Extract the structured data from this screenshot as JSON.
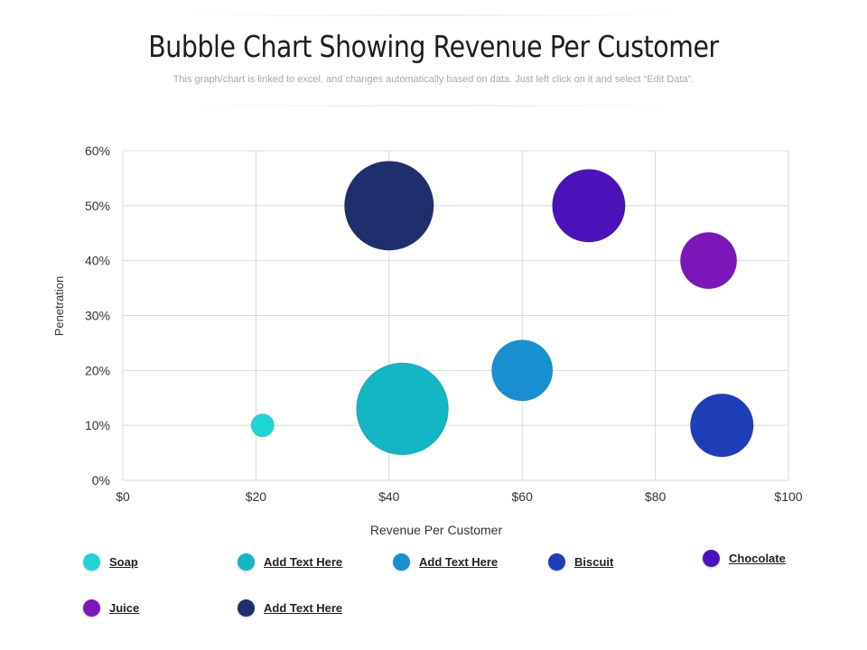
{
  "header": {
    "title": "Bubble Chart Showing Revenue Per Customer",
    "subtitle": "This graph/chart is linked to excel, and changes automatically based on data. Just left click on it and select “Edit Data”."
  },
  "chart_data": {
    "type": "bubble",
    "xlabel": "Revenue Per Customer",
    "ylabel": "Penetration",
    "xlim": [
      0,
      100
    ],
    "ylim": [
      0,
      60
    ],
    "x_ticks": [
      {
        "value": 0,
        "label": "$0"
      },
      {
        "value": 20,
        "label": "$20"
      },
      {
        "value": 40,
        "label": "$40"
      },
      {
        "value": 60,
        "label": "$60"
      },
      {
        "value": 80,
        "label": "$80"
      },
      {
        "value": 100,
        "label": "$100"
      }
    ],
    "y_ticks": [
      {
        "value": 0,
        "label": "0%"
      },
      {
        "value": 10,
        "label": "10%"
      },
      {
        "value": 20,
        "label": "20%"
      },
      {
        "value": 30,
        "label": "30%"
      },
      {
        "value": 40,
        "label": "40%"
      },
      {
        "value": 50,
        "label": "50%"
      },
      {
        "value": 60,
        "label": "60%"
      }
    ],
    "grid": true,
    "legend_position": "bottom",
    "series": [
      {
        "name": "Soap",
        "color": "#1fd5d5",
        "x": 21,
        "y": 10,
        "size": 1
      },
      {
        "name": "Add Text Here",
        "color": "#14b5c5",
        "x": 42,
        "y": 13,
        "size": 16
      },
      {
        "name": "Add Text Here",
        "color": "#1a8fd0",
        "x": 60,
        "y": 20,
        "size": 7
      },
      {
        "name": "Biscuit",
        "color": "#1e3eb8",
        "x": 90,
        "y": 10,
        "size": 7.5
      },
      {
        "name": "Chocolate",
        "color": "#4a12b8",
        "x": 70,
        "y": 50,
        "size": 10
      },
      {
        "name": "Juice",
        "color": "#7b17b8",
        "x": 88,
        "y": 40,
        "size": 6
      },
      {
        "name": "Add Text Here",
        "color": "#1f2f6e",
        "x": 40,
        "y": 50,
        "size": 15
      }
    ]
  }
}
